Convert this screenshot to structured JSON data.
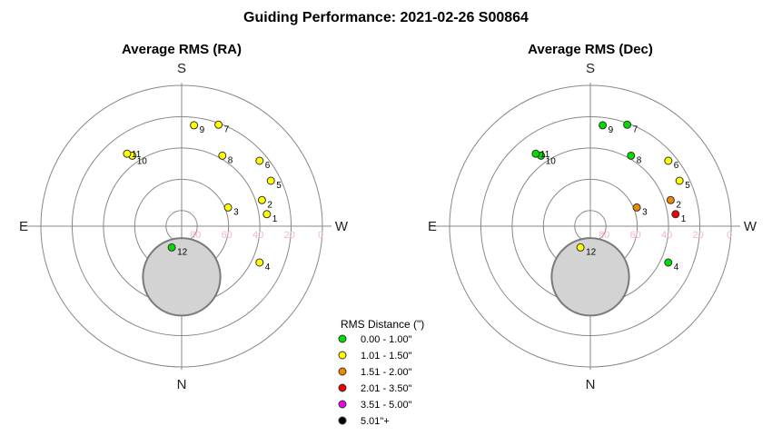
{
  "title": "Guiding Performance: 2021-02-26 S00864",
  "chart_data": [
    {
      "type": "scatter",
      "coordinate_system": "polar-altaz",
      "title": "Average RMS (RA)",
      "compass": {
        "top": "S",
        "bottom": "N",
        "left": "E",
        "right": "W"
      },
      "altitude_ticks": [
        "80",
        "60",
        "40",
        "20",
        "0"
      ],
      "grid": true,
      "obstruction": "moon",
      "points": [
        {
          "label": "1",
          "az": 278,
          "alt": 35,
          "rms_class": "1.01 - 1.50\""
        },
        {
          "label": "2",
          "az": 288,
          "alt": 36,
          "rms_class": "1.01 - 1.50\""
        },
        {
          "label": "3",
          "az": 292,
          "alt": 58,
          "rms_class": "1.01 - 1.50\""
        },
        {
          "label": "4",
          "az": 245,
          "alt": 35,
          "rms_class": "1.01 - 1.50\""
        },
        {
          "label": "5",
          "az": 297,
          "alt": 26,
          "rms_class": "1.01 - 1.50\""
        },
        {
          "label": "6",
          "az": 310,
          "alt": 25,
          "rms_class": "1.01 - 1.50\""
        },
        {
          "label": "7",
          "az": 340,
          "alt": 21,
          "rms_class": "1.01 - 1.50\""
        },
        {
          "label": "8",
          "az": 330,
          "alt": 38,
          "rms_class": "1.01 - 1.50\""
        },
        {
          "label": "9",
          "az": 353,
          "alt": 25,
          "rms_class": "1.01 - 1.50\""
        },
        {
          "label": "10",
          "az": 35,
          "alt": 35,
          "rms_class": "1.01 - 1.50\""
        },
        {
          "label": "11",
          "az": 37,
          "alt": 32,
          "rms_class": "1.01 - 1.50\""
        },
        {
          "label": "12",
          "az": 155,
          "alt": 75,
          "rms_class": "0.00 - 1.00\""
        }
      ]
    },
    {
      "type": "scatter",
      "coordinate_system": "polar-altaz",
      "title": "Average RMS (Dec)",
      "compass": {
        "top": "S",
        "bottom": "N",
        "left": "E",
        "right": "W"
      },
      "altitude_ticks": [
        "80",
        "60",
        "40",
        "20",
        "0"
      ],
      "grid": true,
      "obstruction": "moon",
      "points": [
        {
          "label": "1",
          "az": 278,
          "alt": 35,
          "rms_class": "2.01 - 3.50\""
        },
        {
          "label": "2",
          "az": 288,
          "alt": 36,
          "rms_class": "1.51 - 2.00\""
        },
        {
          "label": "3",
          "az": 292,
          "alt": 58,
          "rms_class": "1.51 - 2.00\""
        },
        {
          "label": "4",
          "az": 245,
          "alt": 35,
          "rms_class": "0.00 - 1.00\""
        },
        {
          "label": "5",
          "az": 297,
          "alt": 26,
          "rms_class": "1.01 - 1.50\""
        },
        {
          "label": "6",
          "az": 310,
          "alt": 25,
          "rms_class": "1.01 - 1.50\""
        },
        {
          "label": "7",
          "az": 340,
          "alt": 21,
          "rms_class": "0.00 - 1.00\""
        },
        {
          "label": "8",
          "az": 330,
          "alt": 38,
          "rms_class": "0.00 - 1.00\""
        },
        {
          "label": "9",
          "az": 353,
          "alt": 25,
          "rms_class": "0.00 - 1.00\""
        },
        {
          "label": "10",
          "az": 35,
          "alt": 35,
          "rms_class": "0.00 - 1.00\""
        },
        {
          "label": "11",
          "az": 37,
          "alt": 32,
          "rms_class": "0.00 - 1.00\""
        },
        {
          "label": "12",
          "az": 155,
          "alt": 75,
          "rms_class": "1.01 - 1.50\""
        }
      ]
    }
  ],
  "legend": {
    "title": "RMS Distance (\")",
    "placement": "bottom-center",
    "items": [
      {
        "label": "0.00 - 1.00\"",
        "color": "#00dd00"
      },
      {
        "label": "1.01 - 1.50\"",
        "color": "#ffff00"
      },
      {
        "label": "1.51 - 2.00\"",
        "color": "#ee8800"
      },
      {
        "label": "2.01 - 3.50\"",
        "color": "#ee0000"
      },
      {
        "label": "3.51 - 5.00\"",
        "color": "#ee00ee"
      },
      {
        "label": "5.01\"+",
        "color": "#000000"
      }
    ]
  },
  "colors": {
    "grid": "#888888",
    "obstruction_fill": "#d3d3d3",
    "obstruction_stroke": "#7a7a7a",
    "tick_label": "#f2b8c2"
  }
}
